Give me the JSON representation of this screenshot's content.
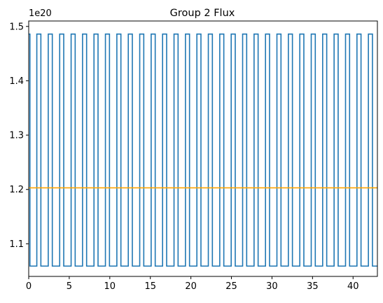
{
  "chart_data": {
    "type": "line",
    "title": "Group 2 Flux",
    "xlabel": "",
    "ylabel": "",
    "y_offset_label": "1e20",
    "y_scale": 1e+20,
    "xlim": [
      0,
      43
    ],
    "ylim": [
      1.04,
      1.51
    ],
    "x_ticks": [
      0,
      5,
      10,
      15,
      20,
      25,
      30,
      35,
      40
    ],
    "x_tick_labels": [
      "0",
      "5",
      "10",
      "15",
      "20",
      "25",
      "30",
      "35",
      "40"
    ],
    "y_ticks": [
      1.1,
      1.2,
      1.3,
      1.4,
      1.5
    ],
    "y_tick_labels": [
      "1.1",
      "1.2",
      "1.3",
      "1.4",
      "1.5"
    ],
    "grid": false,
    "legend": "none",
    "series": [
      {
        "kind": "square-wave",
        "color": "#1f77b4",
        "high": 1.486,
        "low": 1.059,
        "start_high_until": 0.15,
        "period": 1.41,
        "first_rise": 1.0,
        "high_duration": 0.5,
        "x_end": 43
      },
      {
        "kind": "constant",
        "color": "#ffa500",
        "value": 1.203,
        "x_start": 0,
        "x_end": 43
      }
    ]
  }
}
